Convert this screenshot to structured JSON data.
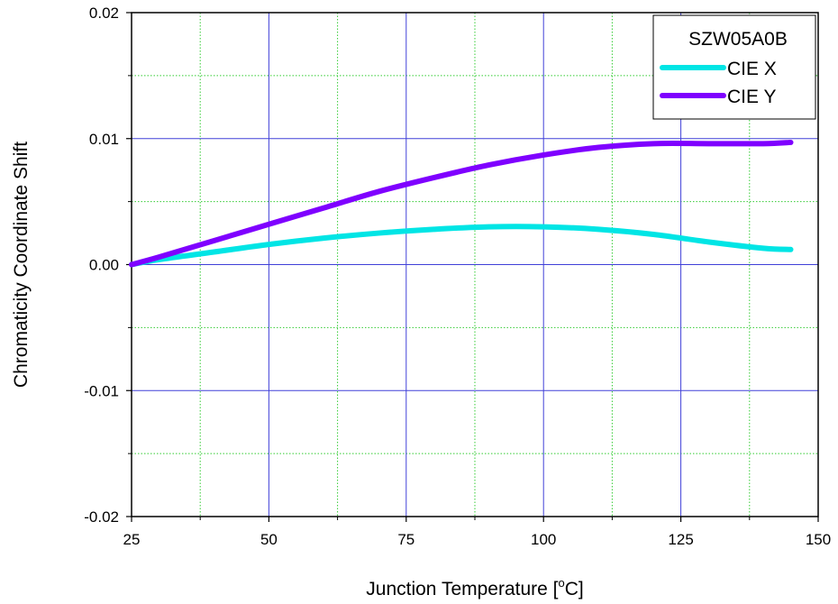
{
  "chart_data": {
    "type": "line",
    "xlabel": "Junction Temperature [",
    "xlabel_sup": "o",
    "xlabel_end": "C]",
    "ylabel": "Chromaticity Coordinate Shift",
    "xlim": [
      25,
      150
    ],
    "ylim": [
      -0.02,
      0.02
    ],
    "x_ticks": [
      25,
      50,
      75,
      100,
      125,
      150
    ],
    "x_tick_labels": [
      "25",
      "50",
      "75",
      "100",
      "125",
      "150"
    ],
    "y_ticks": [
      -0.02,
      -0.01,
      0.0,
      0.01,
      0.02
    ],
    "y_tick_labels": [
      "-0.02",
      "-0.01",
      "0.00",
      "0.01",
      "0.02"
    ],
    "grid": true,
    "legend_title": "SZW05A0B",
    "legend_position": "top-right",
    "series": [
      {
        "name": "CIE X",
        "color": "#00e5e5",
        "x": [
          25,
          30,
          40,
          50,
          60,
          70,
          80,
          90,
          100,
          110,
          120,
          130,
          140,
          145
        ],
        "y": [
          0.0,
          0.0004,
          0.001,
          0.0016,
          0.0021,
          0.0025,
          0.0028,
          0.003,
          0.003,
          0.0028,
          0.0024,
          0.0018,
          0.0013,
          0.0012
        ]
      },
      {
        "name": "CIE Y",
        "color": "#7f00ff",
        "x": [
          25,
          30,
          40,
          50,
          60,
          70,
          80,
          90,
          100,
          110,
          120,
          130,
          140,
          145
        ],
        "y": [
          0.0,
          0.0006,
          0.0019,
          0.0032,
          0.0045,
          0.0058,
          0.0069,
          0.0079,
          0.0087,
          0.0093,
          0.0096,
          0.0096,
          0.0096,
          0.0097
        ]
      }
    ]
  }
}
